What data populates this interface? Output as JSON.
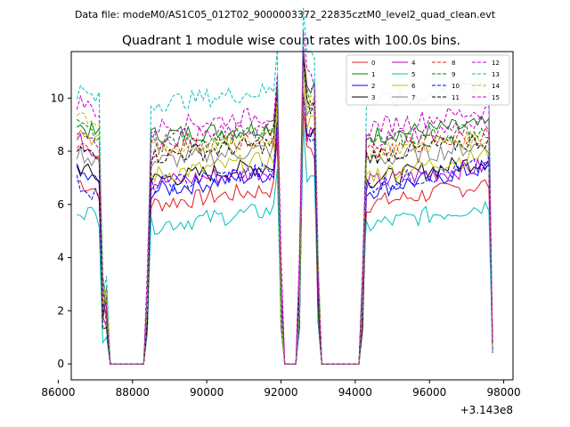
{
  "chart_data": {
    "type": "line",
    "suptitle": "Data file: modeM0/AS1C05_012T02_9000003372_22835cztM0_level2_quad_clean.evt",
    "title": "Quadrant 1 module wise count rates with 100.0s bins.",
    "xlabel": "",
    "ylabel": "",
    "x_offset_label": "+3.143e8",
    "xlim": [
      86350,
      98250
    ],
    "ylim": [
      -0.6,
      11.75
    ],
    "xticks": [
      86000,
      88000,
      90000,
      92000,
      94000,
      96000,
      98000
    ],
    "xtick_labels": [
      "86000",
      "88000",
      "90000",
      "92000",
      "94000",
      "96000",
      "98000"
    ],
    "yticks": [
      0,
      2,
      4,
      6,
      8,
      10
    ],
    "ytick_labels": [
      "0",
      "2",
      "4",
      "6",
      "8",
      "10"
    ],
    "x_start": 86500,
    "x_step": 100,
    "x_end": 97700,
    "segments": [
      {
        "from": 86500,
        "to": 87100,
        "state": "high"
      },
      {
        "from": 87200,
        "to": 87300,
        "state": "ramp"
      },
      {
        "from": 87400,
        "to": 88300,
        "state": "zero"
      },
      {
        "from": 88400,
        "to": 88400,
        "state": "ramp"
      },
      {
        "from": 88500,
        "to": 91900,
        "state": "high"
      },
      {
        "from": 92000,
        "to": 92000,
        "state": "ramp"
      },
      {
        "from": 92100,
        "to": 92400,
        "state": "zero"
      },
      {
        "from": 92500,
        "to": 92500,
        "state": "ramp"
      },
      {
        "from": 92600,
        "to": 92900,
        "state": "high"
      },
      {
        "from": 93000,
        "to": 93000,
        "state": "ramp"
      },
      {
        "from": 93100,
        "to": 94100,
        "state": "zero"
      },
      {
        "from": 94200,
        "to": 94200,
        "state": "ramp"
      },
      {
        "from": 94300,
        "to": 97600,
        "state": "high"
      },
      {
        "from": 97700,
        "to": 97700,
        "state": "ramp"
      }
    ],
    "series": [
      {
        "name": "0",
        "color": "#e41a1c",
        "dash": "solid",
        "level": 6.0,
        "start": 6.9,
        "drift": 0.6
      },
      {
        "name": "1",
        "color": "#008000",
        "dash": "solid",
        "level": 8.6,
        "start": 9.0,
        "drift": 0.3
      },
      {
        "name": "2",
        "color": "#0000ff",
        "dash": "solid",
        "level": 6.5,
        "start": 7.2,
        "drift": 0.7
      },
      {
        "name": "3",
        "color": "#000000",
        "dash": "solid",
        "level": 6.9,
        "start": 7.4,
        "drift": 0.6
      },
      {
        "name": "4",
        "color": "#bf00bf",
        "dash": "solid",
        "level": 6.8,
        "start": 8.4,
        "drift": 0.5
      },
      {
        "name": "5",
        "color": "#00bfbf",
        "dash": "solid",
        "level": 5.2,
        "start": 5.9,
        "drift": 0.6
      },
      {
        "name": "6",
        "color": "#bfbf00",
        "dash": "solid",
        "level": 7.1,
        "start": 8.8,
        "drift": 0.6
      },
      {
        "name": "7",
        "color": "#808080",
        "dash": "solid",
        "level": 7.6,
        "start": 8.0,
        "drift": 0.5
      },
      {
        "name": "8",
        "color": "#e41a1c",
        "dash": "dashed",
        "level": 8.0,
        "start": 8.3,
        "drift": 0.5
      },
      {
        "name": "9",
        "color": "#008000",
        "dash": "dashed",
        "level": 8.3,
        "start": 8.9,
        "drift": 0.4
      },
      {
        "name": "10",
        "color": "#0000ff",
        "dash": "dashed",
        "level": 6.7,
        "start": 6.8,
        "drift": 0.6
      },
      {
        "name": "11",
        "color": "#000000",
        "dash": "dashed",
        "level": 7.8,
        "start": 8.1,
        "drift": 0.5
      },
      {
        "name": "12",
        "color": "#bf00bf",
        "dash": "dashed",
        "level": 8.9,
        "start": 9.9,
        "drift": 0.5
      },
      {
        "name": "13",
        "color": "#00bfbf",
        "dash": "dashed",
        "level": 9.8,
        "start": 10.3,
        "drift": 0.5
      },
      {
        "name": "14",
        "color": "#bfbf00",
        "dash": "dashed",
        "level": 8.0,
        "start": 9.5,
        "drift": 0.4
      },
      {
        "name": "15",
        "color": "#bf00bf",
        "dash": "dashed",
        "level": 8.4,
        "start": 8.8,
        "drift": 0.5
      }
    ],
    "legend_location": "top-right"
  }
}
